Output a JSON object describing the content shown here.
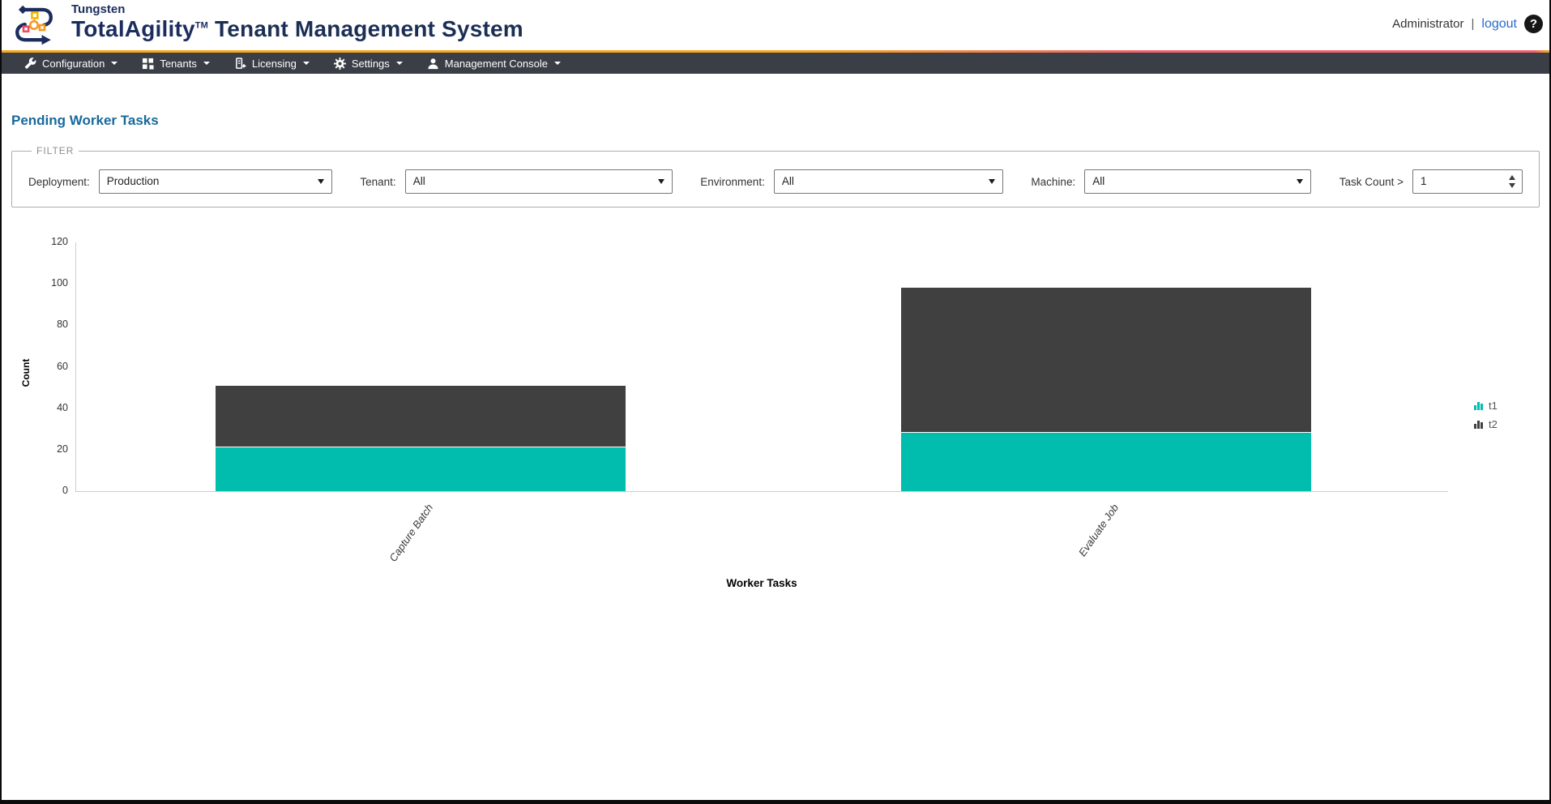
{
  "header": {
    "brand_small": "Tungsten",
    "brand_main": "TotalAgility",
    "brand_tm": "TM",
    "brand_suffix": " Tenant Management System",
    "user": "Administrator",
    "divider": "|",
    "logout_label": "logout",
    "help_label": "?"
  },
  "nav": {
    "items": [
      {
        "label": "Configuration",
        "icon": "wrench-icon"
      },
      {
        "label": "Tenants",
        "icon": "tiles-icon"
      },
      {
        "label": "Licensing",
        "icon": "license-icon"
      },
      {
        "label": "Settings",
        "icon": "gear-icon"
      },
      {
        "label": "Management Console",
        "icon": "person-icon"
      }
    ]
  },
  "page": {
    "title": "Pending Worker Tasks"
  },
  "filter": {
    "legend": "FILTER",
    "fields": [
      {
        "label": "Deployment:",
        "value": "Production"
      },
      {
        "label": "Tenant:",
        "value": "All"
      },
      {
        "label": "Environment:",
        "value": "All"
      },
      {
        "label": "Machine:",
        "value": "All"
      },
      {
        "label": "Task Count >",
        "value": "1"
      }
    ]
  },
  "chart_data": {
    "type": "bar",
    "stacked": true,
    "categories": [
      "Capture Batch",
      "Evaluate Job"
    ],
    "series": [
      {
        "name": "t1",
        "color": "#00bdae",
        "values": [
          21,
          28
        ]
      },
      {
        "name": "t2",
        "color": "#404040",
        "values": [
          30,
          70
        ]
      }
    ],
    "title": "",
    "xlabel": "Worker Tasks",
    "ylabel": "Count",
    "ylim": [
      0,
      120
    ],
    "ytick_step": 20,
    "grid": false,
    "legend_position": "right"
  },
  "colors": {
    "accent_teal": "#00bdae",
    "accent_dark": "#404040",
    "title_blue": "#17699c",
    "nav_bg": "#3a3e46",
    "rule_orange": "#f8a51b",
    "rule_pink": "#ef616b"
  }
}
